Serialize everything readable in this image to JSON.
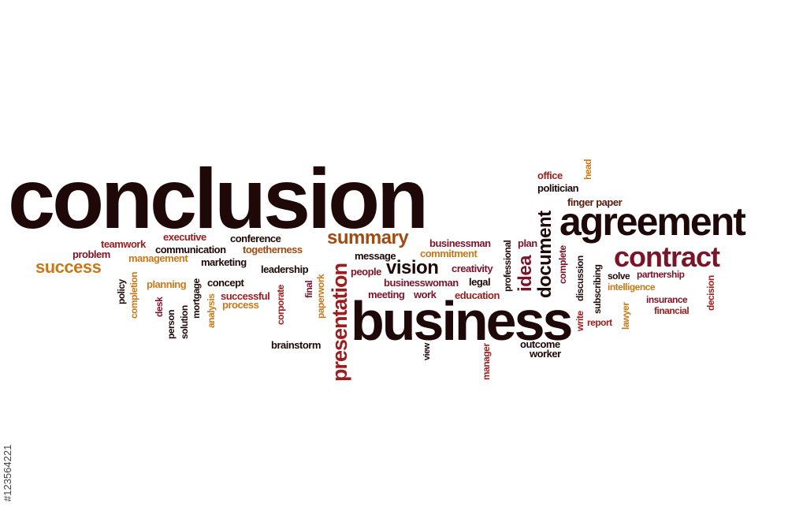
{
  "words": [
    {
      "t": "conclusion",
      "c": "dark"
    },
    {
      "t": "agreement",
      "c": "dark"
    },
    {
      "t": "business",
      "c": "dark"
    },
    {
      "t": "contract",
      "c": "maroon"
    },
    {
      "t": "presentation",
      "c": "red"
    },
    {
      "t": "summary",
      "c": "rust"
    },
    {
      "t": "success",
      "c": "orange"
    },
    {
      "t": "vision",
      "c": "dark"
    },
    {
      "t": "document",
      "c": "dark"
    },
    {
      "t": "idea",
      "c": "maroon"
    },
    {
      "t": "office",
      "c": "red"
    },
    {
      "t": "head",
      "c": "orange"
    },
    {
      "t": "politician",
      "c": "dark"
    },
    {
      "t": "finger paper",
      "c": "brown"
    },
    {
      "t": "teamwork",
      "c": "red"
    },
    {
      "t": "executive",
      "c": "red"
    },
    {
      "t": "conference",
      "c": "dark"
    },
    {
      "t": "communication",
      "c": "dark"
    },
    {
      "t": "togetherness",
      "c": "rust"
    },
    {
      "t": "problem",
      "c": "maroon"
    },
    {
      "t": "management",
      "c": "orange"
    },
    {
      "t": "marketing",
      "c": "dark"
    },
    {
      "t": "leadership",
      "c": "dark"
    },
    {
      "t": "businessman",
      "c": "maroon"
    },
    {
      "t": "commitment",
      "c": "orange"
    },
    {
      "t": "message",
      "c": "dark"
    },
    {
      "t": "people",
      "c": "maroon"
    },
    {
      "t": "creativity",
      "c": "maroon"
    },
    {
      "t": "businesswoman",
      "c": "maroon"
    },
    {
      "t": "legal",
      "c": "dark"
    },
    {
      "t": "meeting",
      "c": "maroon"
    },
    {
      "t": "work",
      "c": "maroon"
    },
    {
      "t": "education",
      "c": "red"
    },
    {
      "t": "plan",
      "c": "maroon"
    },
    {
      "t": "professional",
      "c": "dark"
    },
    {
      "t": "complete",
      "c": "maroon"
    },
    {
      "t": "discussion",
      "c": "dark"
    },
    {
      "t": "subscribing",
      "c": "dark"
    },
    {
      "t": "solve",
      "c": "dark"
    },
    {
      "t": "partnership",
      "c": "maroon"
    },
    {
      "t": "intelligence",
      "c": "orange"
    },
    {
      "t": "decision",
      "c": "red"
    },
    {
      "t": "insurance",
      "c": "maroon"
    },
    {
      "t": "financial",
      "c": "red"
    },
    {
      "t": "write",
      "c": "red"
    },
    {
      "t": "report",
      "c": "red"
    },
    {
      "t": "lawyer",
      "c": "orange"
    },
    {
      "t": "policy",
      "c": "dark"
    },
    {
      "t": "completion",
      "c": "orange"
    },
    {
      "t": "planning",
      "c": "orange"
    },
    {
      "t": "desk",
      "c": "maroon"
    },
    {
      "t": "person",
      "c": "dark"
    },
    {
      "t": "solution",
      "c": "dark"
    },
    {
      "t": "mortgage",
      "c": "dark"
    },
    {
      "t": "analysis",
      "c": "orange"
    },
    {
      "t": "concept",
      "c": "dark"
    },
    {
      "t": "successful",
      "c": "red"
    },
    {
      "t": "process",
      "c": "orange"
    },
    {
      "t": "corporate",
      "c": "red"
    },
    {
      "t": "final",
      "c": "maroon"
    },
    {
      "t": "paperwork",
      "c": "orange"
    },
    {
      "t": "brainstorm",
      "c": "dark"
    },
    {
      "t": "view",
      "c": "dark"
    },
    {
      "t": "manager",
      "c": "red"
    },
    {
      "t": "outcome",
      "c": "dark"
    },
    {
      "t": "worker",
      "c": "dark"
    }
  ],
  "image_id": "#123564221"
}
